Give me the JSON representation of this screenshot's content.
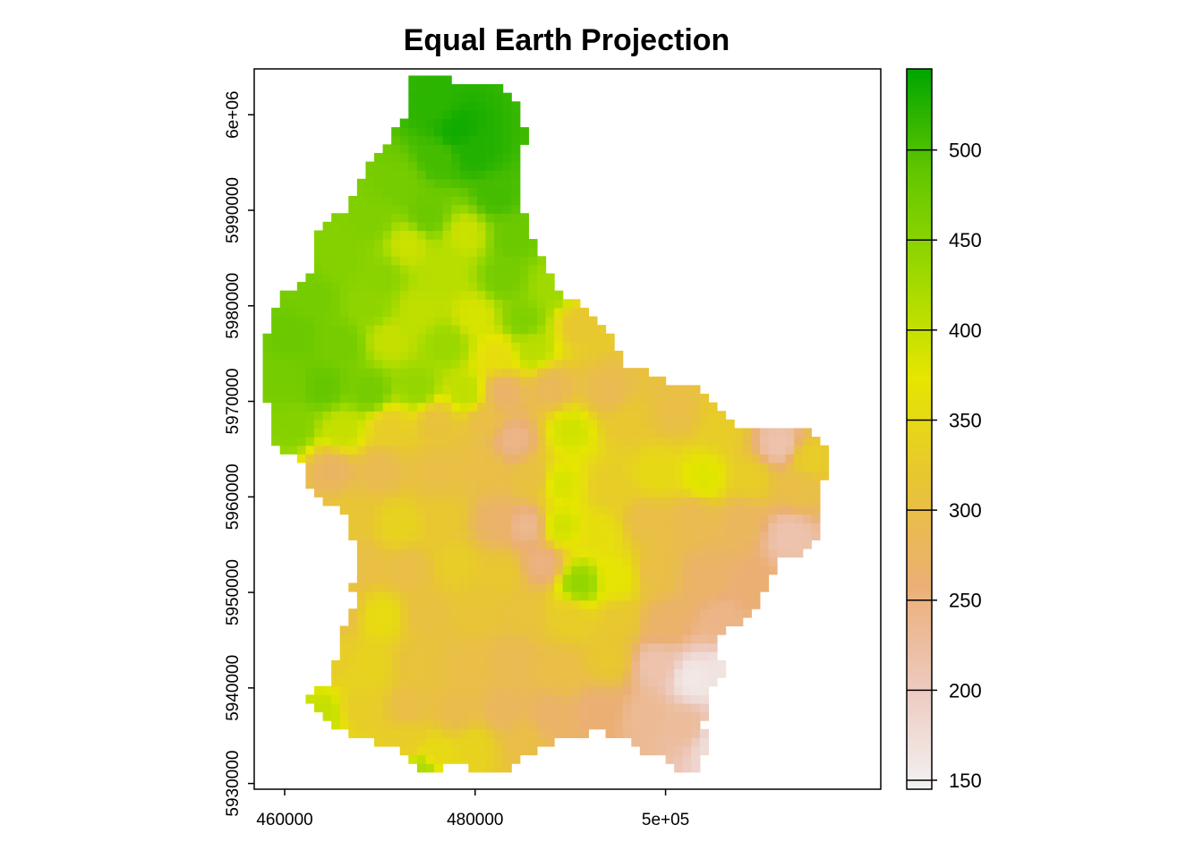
{
  "chart_data": {
    "type": "heatmap",
    "title": "Equal Earth Projection",
    "xlabel": "",
    "ylabel": "",
    "xlim": [
      456800,
      522600
    ],
    "ylim": [
      5929400,
      6004800
    ],
    "x_ticks": [
      {
        "value": 460000,
        "label": "460000"
      },
      {
        "value": 480000,
        "label": "480000"
      },
      {
        "value": 500000,
        "label": "5e+05"
      }
    ],
    "y_ticks": [
      {
        "value": 5930000,
        "label": "5930000"
      },
      {
        "value": 5940000,
        "label": "5940000"
      },
      {
        "value": 5950000,
        "label": "5950000"
      },
      {
        "value": 5960000,
        "label": "5960000"
      },
      {
        "value": 5970000,
        "label": "5970000"
      },
      {
        "value": 5980000,
        "label": "5980000"
      },
      {
        "value": 5990000,
        "label": "5990000"
      },
      {
        "value": 6000000,
        "label": "6e+06"
      }
    ],
    "value_range": [
      145,
      545
    ],
    "legend": {
      "placement": "right",
      "ticks": [
        {
          "value": 150,
          "label": "150"
        },
        {
          "value": 200,
          "label": "200"
        },
        {
          "value": 250,
          "label": "250"
        },
        {
          "value": 300,
          "label": "300"
        },
        {
          "value": 350,
          "label": "350"
        },
        {
          "value": 400,
          "label": "400"
        },
        {
          "value": 450,
          "label": "450"
        },
        {
          "value": 500,
          "label": "500"
        }
      ]
    },
    "colormap": [
      "#F2F2F2",
      "#EDC9BF",
      "#EBAF75",
      "#E8C534",
      "#E6E600",
      "#9ED900",
      "#63C600",
      "#00A600"
    ],
    "boundary": [
      [
        473000,
        6003800
      ],
      [
        475000,
        6004300
      ],
      [
        477000,
        6004100
      ],
      [
        479000,
        6002900
      ],
      [
        482000,
        6003100
      ],
      [
        484000,
        6002000
      ],
      [
        485000,
        5999000
      ],
      [
        486000,
        5998500
      ],
      [
        484500,
        5996000
      ],
      [
        484500,
        5991000
      ],
      [
        486000,
        5987000
      ],
      [
        487500,
        5984500
      ],
      [
        489000,
        5981500
      ],
      [
        491000,
        5980000
      ],
      [
        492500,
        5979000
      ],
      [
        494500,
        5977000
      ],
      [
        495500,
        5974000
      ],
      [
        498000,
        5973500
      ],
      [
        500000,
        5972000
      ],
      [
        502000,
        5971500
      ],
      [
        504500,
        5971000
      ],
      [
        506000,
        5968500
      ],
      [
        508000,
        5967000
      ],
      [
        511000,
        5967500
      ],
      [
        514000,
        5967000
      ],
      [
        516000,
        5966500
      ],
      [
        517000,
        5965000
      ],
      [
        517500,
        5963000
      ],
      [
        516000,
        5960500
      ],
      [
        516500,
        5958000
      ],
      [
        516000,
        5956000
      ],
      [
        514000,
        5954000
      ],
      [
        512000,
        5953500
      ],
      [
        511000,
        5951500
      ],
      [
        510000,
        5949000
      ],
      [
        508000,
        5947000
      ],
      [
        506000,
        5946000
      ],
      [
        505500,
        5944000
      ],
      [
        506500,
        5942000
      ],
      [
        505000,
        5940000
      ],
      [
        504500,
        5938000
      ],
      [
        504000,
        5936000
      ],
      [
        504500,
        5934000
      ],
      [
        503500,
        5931500
      ],
      [
        502000,
        5931200
      ],
      [
        500000,
        5932500
      ],
      [
        498000,
        5933000
      ],
      [
        496000,
        5934500
      ],
      [
        493000,
        5935500
      ],
      [
        490000,
        5935000
      ],
      [
        487000,
        5933500
      ],
      [
        485000,
        5932500
      ],
      [
        483500,
        5931500
      ],
      [
        481000,
        5931000
      ],
      [
        479000,
        5932000
      ],
      [
        477500,
        5932000
      ],
      [
        476000,
        5931000
      ],
      [
        474500,
        5930700
      ],
      [
        473500,
        5932500
      ],
      [
        471500,
        5934000
      ],
      [
        469000,
        5934500
      ],
      [
        467000,
        5935000
      ],
      [
        465500,
        5936000
      ],
      [
        464000,
        5936500
      ],
      [
        463000,
        5937800
      ],
      [
        462500,
        5938800
      ],
      [
        463500,
        5940000
      ],
      [
        465000,
        5941000
      ],
      [
        465500,
        5943500
      ],
      [
        466000,
        5946000
      ],
      [
        467500,
        5948500
      ],
      [
        467000,
        5951000
      ],
      [
        468000,
        5953500
      ],
      [
        467000,
        5956000
      ],
      [
        466500,
        5958500
      ],
      [
        464000,
        5959500
      ],
      [
        462500,
        5961000
      ],
      [
        462000,
        5963500
      ],
      [
        461000,
        5964500
      ],
      [
        459500,
        5965000
      ],
      [
        458500,
        5966000
      ],
      [
        458500,
        5968500
      ],
      [
        458000,
        5971000
      ],
      [
        457500,
        5973000
      ],
      [
        458000,
        5976000
      ],
      [
        458500,
        5979000
      ],
      [
        459500,
        5981000
      ],
      [
        461500,
        5982000
      ],
      [
        463000,
        5984000
      ],
      [
        463000,
        5987000
      ],
      [
        464500,
        5989000
      ],
      [
        467000,
        5990500
      ],
      [
        467500,
        5993000
      ],
      [
        469500,
        5995500
      ],
      [
        471000,
        5997500
      ],
      [
        472500,
        5999500
      ],
      [
        473000,
        6002000
      ]
    ],
    "elevation_anchors": [
      [
        476000,
        6001000,
        520
      ],
      [
        478000,
        5998500,
        535
      ],
      [
        480000,
        5996000,
        525
      ],
      [
        476000,
        5995500,
        505
      ],
      [
        472000,
        5993000,
        470
      ],
      [
        482000,
        5991500,
        505
      ],
      [
        469000,
        5989000,
        460
      ],
      [
        475000,
        5989500,
        480
      ],
      [
        479000,
        5987500,
        395
      ],
      [
        473000,
        5986500,
        395
      ],
      [
        484000,
        5987000,
        480
      ],
      [
        466000,
        5985000,
        455
      ],
      [
        470000,
        5983000,
        450
      ],
      [
        477000,
        5984000,
        410
      ],
      [
        483000,
        5983000,
        470
      ],
      [
        488000,
        5982000,
        430
      ],
      [
        463000,
        5981000,
        470
      ],
      [
        469000,
        5980000,
        445
      ],
      [
        474000,
        5979500,
        405
      ],
      [
        480000,
        5979000,
        385
      ],
      [
        485000,
        5978500,
        460
      ],
      [
        491000,
        5978000,
        320
      ],
      [
        461000,
        5977000,
        480
      ],
      [
        466000,
        5976000,
        470
      ],
      [
        471000,
        5976500,
        400
      ],
      [
        477000,
        5976000,
        435
      ],
      [
        482500,
        5975000,
        360
      ],
      [
        486000,
        5975500,
        410
      ],
      [
        460000,
        5972000,
        470
      ],
      [
        464000,
        5971500,
        485
      ],
      [
        469000,
        5971000,
        470
      ],
      [
        474000,
        5971500,
        440
      ],
      [
        479000,
        5971000,
        405
      ],
      [
        483000,
        5971000,
        270
      ],
      [
        488000,
        5971500,
        285
      ],
      [
        494000,
        5971000,
        290
      ],
      [
        461000,
        5967500,
        455
      ],
      [
        466000,
        5967000,
        400
      ],
      [
        471000,
        5967500,
        330
      ],
      [
        476000,
        5968000,
        310
      ],
      [
        481000,
        5968000,
        300
      ],
      [
        484000,
        5966000,
        245
      ],
      [
        490000,
        5967000,
        390
      ],
      [
        496000,
        5968000,
        320
      ],
      [
        501000,
        5969000,
        300
      ],
      [
        506000,
        5967500,
        330
      ],
      [
        512000,
        5965500,
        215
      ],
      [
        515000,
        5964000,
        330
      ],
      [
        465000,
        5963000,
        275
      ],
      [
        470000,
        5963000,
        290
      ],
      [
        476000,
        5962500,
        300
      ],
      [
        481000,
        5963000,
        300
      ],
      [
        486000,
        5962000,
        305
      ],
      [
        489000,
        5961500,
        385
      ],
      [
        494000,
        5961000,
        330
      ],
      [
        499000,
        5962500,
        350
      ],
      [
        504000,
        5962000,
        380
      ],
      [
        509000,
        5962000,
        330
      ],
      [
        514000,
        5961000,
        300
      ],
      [
        467000,
        5958000,
        315
      ],
      [
        472000,
        5957000,
        340
      ],
      [
        477000,
        5958000,
        320
      ],
      [
        482000,
        5957500,
        270
      ],
      [
        485500,
        5957000,
        240
      ],
      [
        489000,
        5957000,
        390
      ],
      [
        493000,
        5956000,
        360
      ],
      [
        498000,
        5957500,
        300
      ],
      [
        503000,
        5958000,
        290
      ],
      [
        508000,
        5957500,
        280
      ],
      [
        513000,
        5956000,
        215
      ],
      [
        468000,
        5953000,
        300
      ],
      [
        473000,
        5952500,
        300
      ],
      [
        478000,
        5953000,
        330
      ],
      [
        483000,
        5952000,
        320
      ],
      [
        487000,
        5953000,
        250
      ],
      [
        491000,
        5951000,
        440
      ],
      [
        495000,
        5951500,
        370
      ],
      [
        499000,
        5952000,
        300
      ],
      [
        504000,
        5951500,
        270
      ],
      [
        509000,
        5950500,
        260
      ],
      [
        466000,
        5948000,
        300
      ],
      [
        470000,
        5947500,
        355
      ],
      [
        475000,
        5947500,
        305
      ],
      [
        480000,
        5948000,
        315
      ],
      [
        485000,
        5948000,
        310
      ],
      [
        490000,
        5947500,
        330
      ],
      [
        495000,
        5947000,
        320
      ],
      [
        500000,
        5947000,
        270
      ],
      [
        506000,
        5947000,
        245
      ],
      [
        465000,
        5943000,
        330
      ],
      [
        469000,
        5942000,
        340
      ],
      [
        474000,
        5942500,
        310
      ],
      [
        479000,
        5942500,
        300
      ],
      [
        484000,
        5943000,
        290
      ],
      [
        489000,
        5942000,
        300
      ],
      [
        494000,
        5943000,
        320
      ],
      [
        499000,
        5942500,
        215
      ],
      [
        503000,
        5941000,
        160
      ],
      [
        506000,
        5941500,
        165
      ],
      [
        464000,
        5937500,
        400
      ],
      [
        468000,
        5938000,
        330
      ],
      [
        473000,
        5938000,
        300
      ],
      [
        478000,
        5937500,
        295
      ],
      [
        483000,
        5937500,
        280
      ],
      [
        488000,
        5937000,
        270
      ],
      [
        493000,
        5937500,
        260
      ],
      [
        498000,
        5937000,
        235
      ],
      [
        502000,
        5936000,
        230
      ],
      [
        505000,
        5934000,
        175
      ],
      [
        473000,
        5934500,
        330
      ],
      [
        476000,
        5933000,
        350
      ],
      [
        480000,
        5934000,
        340
      ],
      [
        485000,
        5934500,
        300
      ],
      [
        474500,
        5931500,
        420
      ]
    ]
  }
}
